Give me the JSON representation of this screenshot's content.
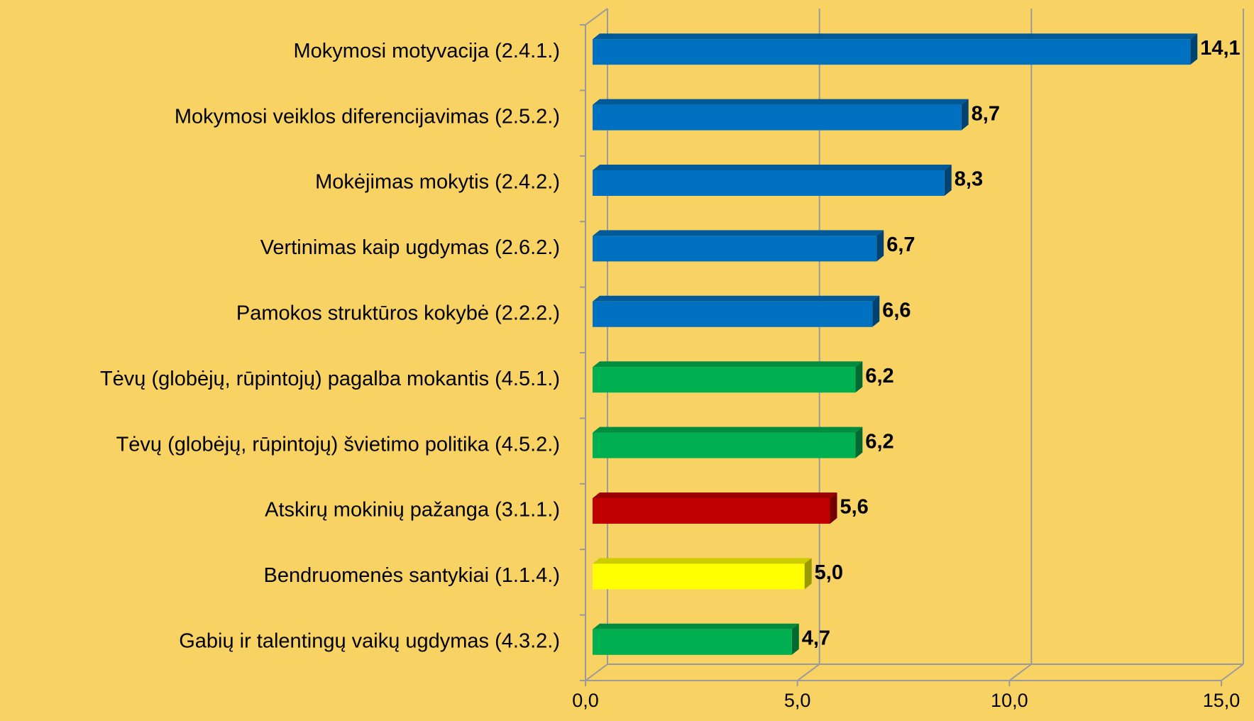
{
  "chart_data": {
    "type": "bar",
    "orientation": "horizontal",
    "categories": [
      "Mokymosi motyvacija (2.4.1.)",
      "Mokymosi veiklos diferencijavimas (2.5.2.)",
      "Mokėjimas mokytis (2.4.2.)",
      "Vertinimas kaip ugdymas (2.6.2.)",
      "Pamokos struktūros kokybė (2.2.2.)",
      "Tėvų (globėjų, rūpintojų) pagalba mokantis (4.5.1.)",
      "Tėvų (globėjų, rūpintojų) švietimo politika (4.5.2.)",
      "Atskirų mokinių pažanga (3.1.1.)",
      "Bendruomenės  santykiai (1.1.4.)",
      "Gabių ir talentingų vaikų ugdymas (4.3.2.)"
    ],
    "values": [
      14.1,
      8.7,
      8.3,
      6.7,
      6.6,
      6.2,
      6.2,
      5.6,
      5.0,
      4.7
    ],
    "value_labels": [
      "14,1",
      "8,7",
      "8,3",
      "6,7",
      "6,6",
      "6,2",
      "6,2",
      "5,6",
      "5,0",
      "4,7"
    ],
    "colors": [
      "#0070c0",
      "#0070c0",
      "#0070c0",
      "#0070c0",
      "#0070c0",
      "#00b050",
      "#00b050",
      "#c00000",
      "#ffff00",
      "#00b050"
    ],
    "xlim": [
      0,
      15
    ],
    "xticks": [
      {
        "value": 0,
        "label": "0,0"
      },
      {
        "value": 5,
        "label": "5,0"
      },
      {
        "value": 10,
        "label": "10,0"
      },
      {
        "value": 15,
        "label": "15,0"
      }
    ],
    "grid": true
  }
}
